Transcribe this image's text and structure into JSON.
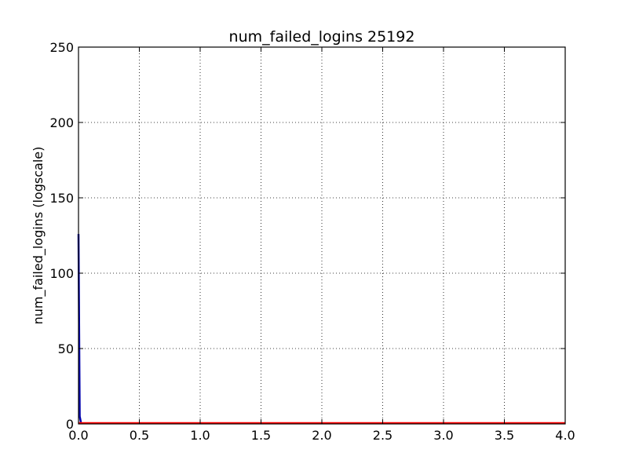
{
  "chart_data": {
    "type": "line",
    "title": "num_failed_logins 25192",
    "xlabel": "",
    "ylabel": "num_failed_logins (logscale)",
    "xlim": [
      0,
      4
    ],
    "ylim": [
      0,
      250
    ],
    "x_ticks": [
      "0.0",
      "0.5",
      "1.0",
      "1.5",
      "2.0",
      "2.5",
      "3.0",
      "3.5",
      "4.0"
    ],
    "x_tick_values": [
      0,
      0.5,
      1.0,
      1.5,
      2.0,
      2.5,
      3.0,
      3.5,
      4.0
    ],
    "y_ticks": [
      "0",
      "50",
      "100",
      "150",
      "200",
      "250"
    ],
    "y_tick_values": [
      0,
      50,
      100,
      150,
      200,
      250
    ],
    "grid": true,
    "series": [
      {
        "color": "#0000aa",
        "x": [
          0,
          0.01,
          0.02
        ],
        "y": [
          126,
          5,
          1
        ]
      },
      {
        "color": "#ff0000",
        "x": [
          0,
          4
        ],
        "y": [
          0.5,
          0.5
        ]
      }
    ]
  }
}
